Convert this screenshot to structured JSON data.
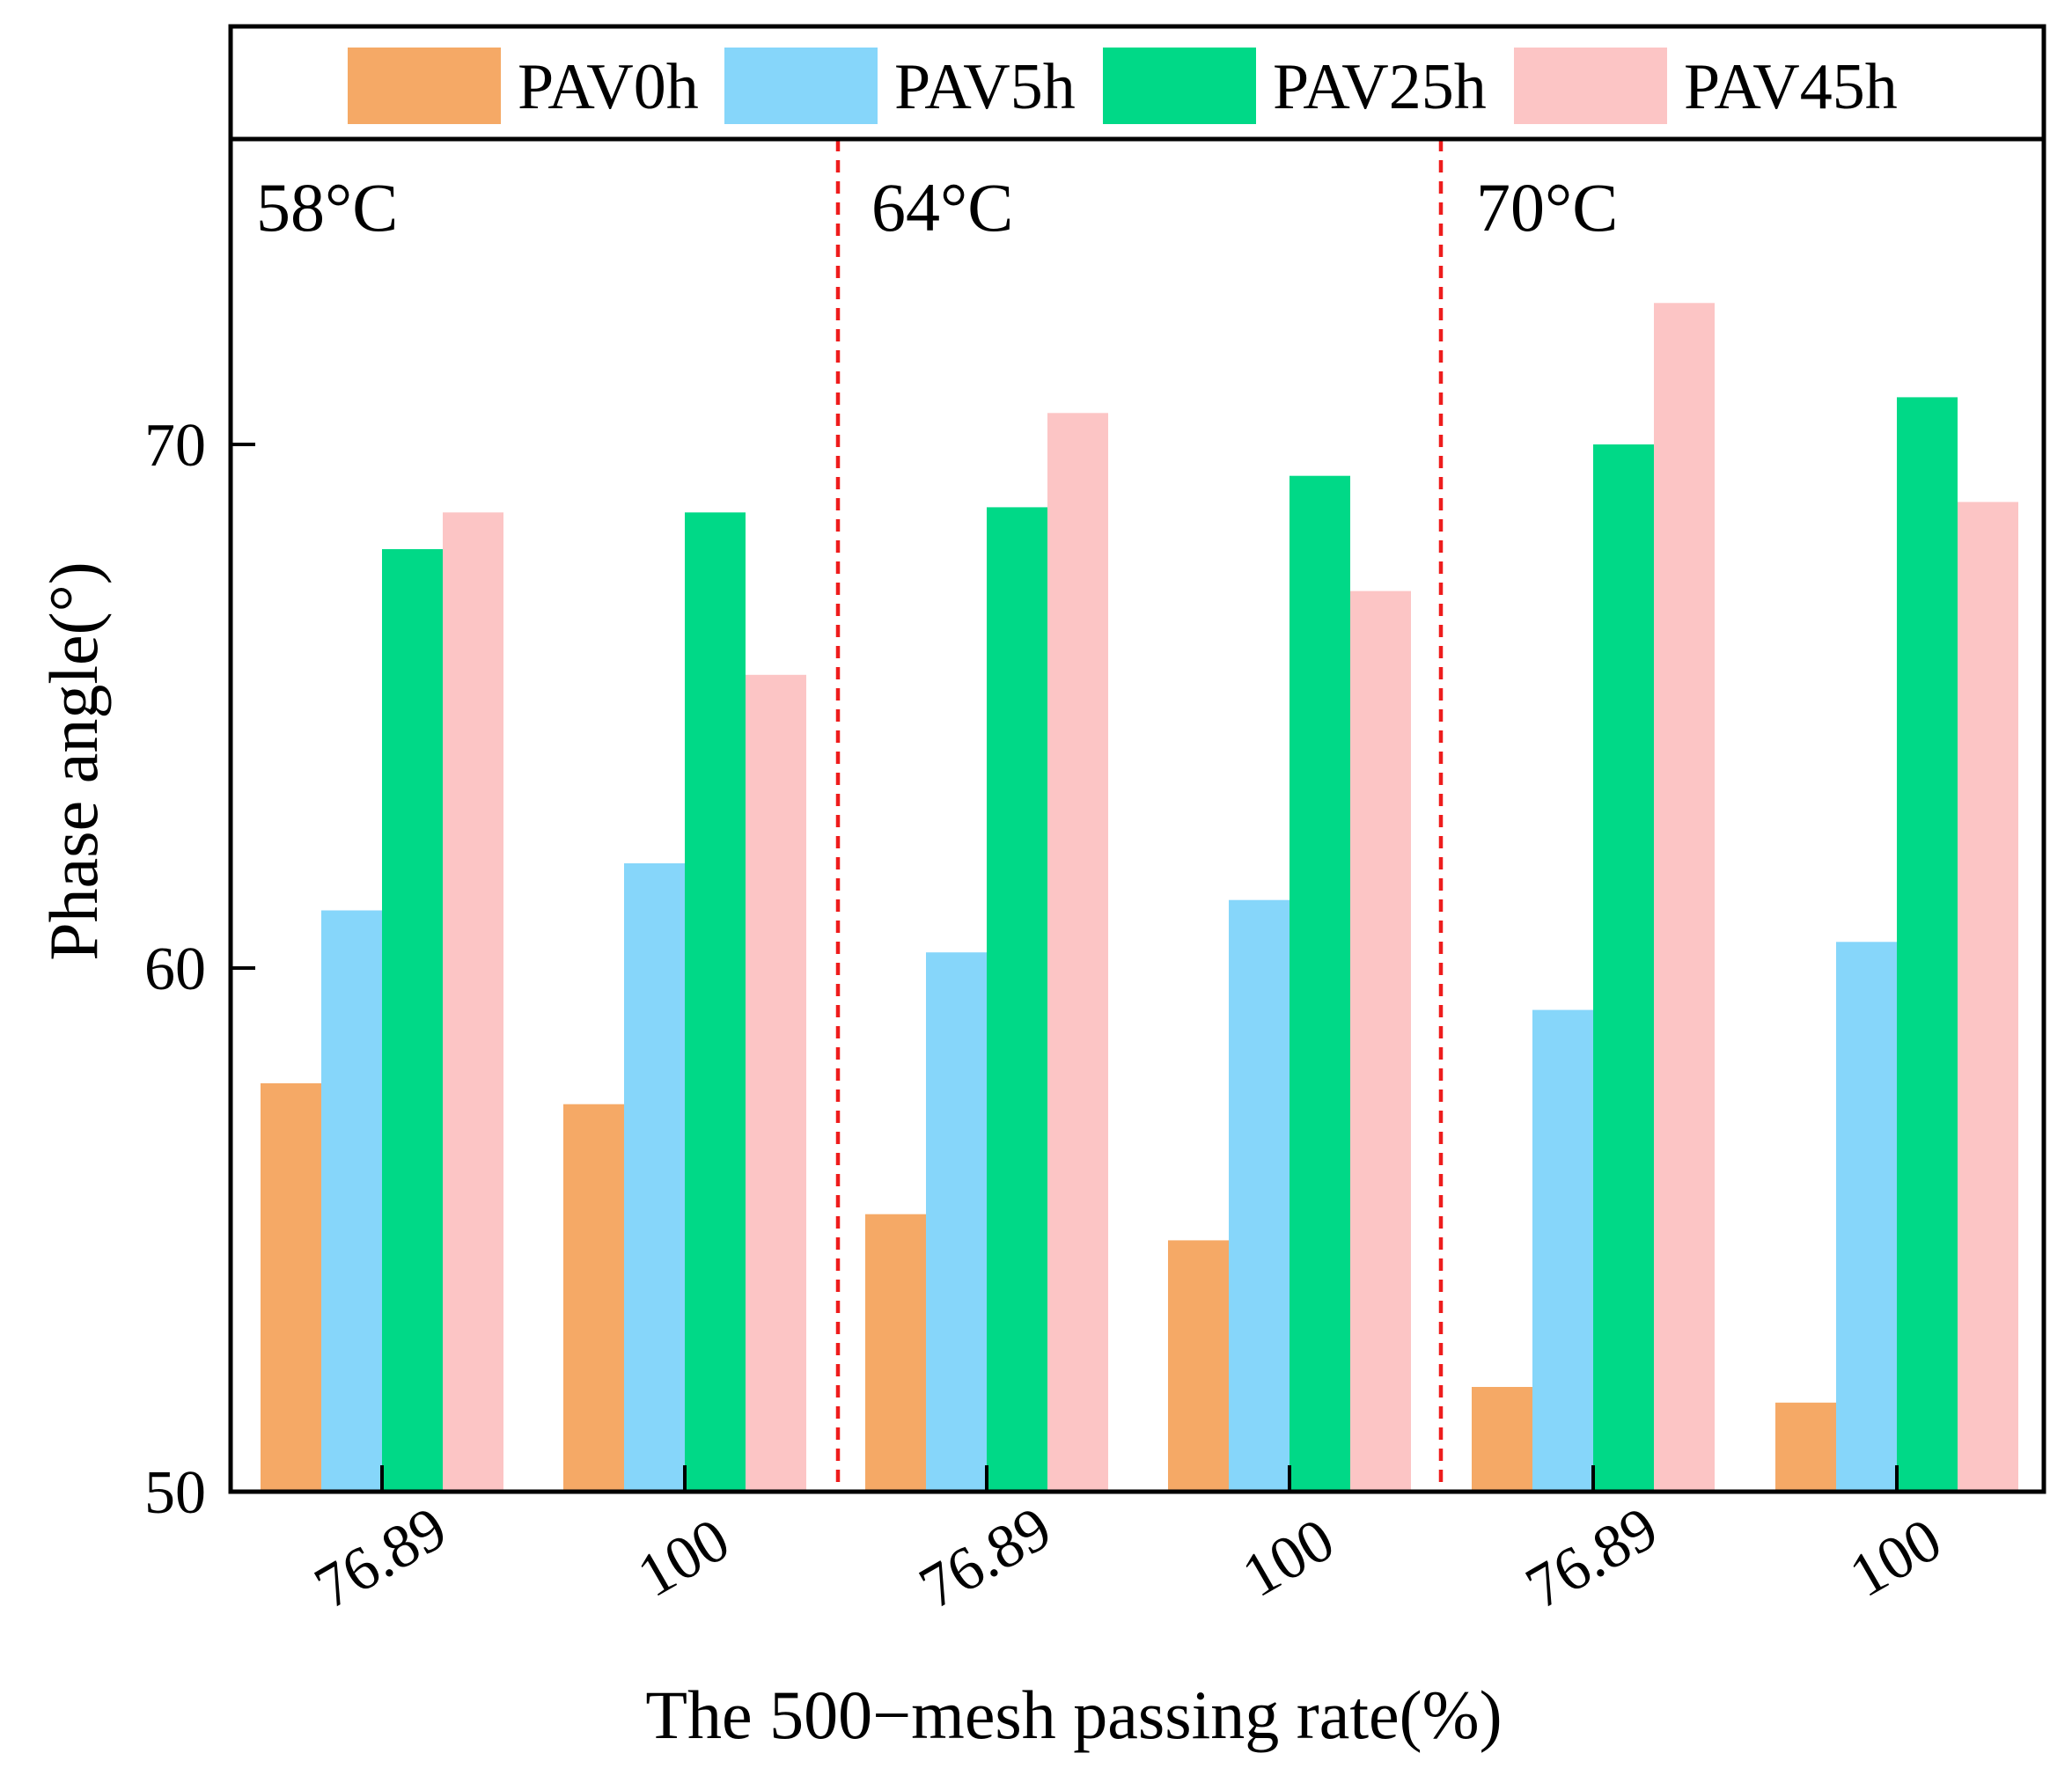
{
  "chart_data": {
    "type": "bar",
    "xlabel": "The 500−mesh passing rate(%)",
    "ylabel": "Phase angle(°)",
    "ylim": [
      50,
      75
    ],
    "yticks": [
      "50",
      "60",
      "70"
    ],
    "ytick_values": [
      50,
      60,
      70
    ],
    "grid": false,
    "legend_position": "top",
    "panels": [
      {
        "label": "58°C",
        "categories": [
          "76.89",
          "100"
        ],
        "series": [
          {
            "name": "PAV0h",
            "values": [
              57.8,
              57.4
            ]
          },
          {
            "name": "PAV5h",
            "values": [
              61.1,
              62.0
            ]
          },
          {
            "name": "PAV25h",
            "values": [
              68.0,
              68.7
            ]
          },
          {
            "name": "PAV45h",
            "values": [
              68.7,
              65.6
            ]
          }
        ]
      },
      {
        "label": "64°C",
        "categories": [
          "76.89",
          "100"
        ],
        "series": [
          {
            "name": "PAV0h",
            "values": [
              55.3,
              54.8
            ]
          },
          {
            "name": "PAV5h",
            "values": [
              60.3,
              61.3
            ]
          },
          {
            "name": "PAV25h",
            "values": [
              68.8,
              69.4
            ]
          },
          {
            "name": "PAV45h",
            "values": [
              70.6,
              67.2
            ]
          }
        ]
      },
      {
        "label": "70°C",
        "categories": [
          "76.89",
          "100"
        ],
        "series": [
          {
            "name": "PAV0h",
            "values": [
              52.0,
              51.7
            ]
          },
          {
            "name": "PAV5h",
            "values": [
              59.2,
              60.5
            ]
          },
          {
            "name": "PAV25h",
            "values": [
              70.0,
              70.9
            ]
          },
          {
            "name": "PAV45h",
            "values": [
              72.7,
              68.9
            ]
          }
        ]
      }
    ],
    "colors": {
      "PAV0h": "#f5a966",
      "PAV5h": "#86d6fa",
      "PAV25h": "#00d987",
      "PAV45h": "#fcc5c5"
    },
    "divider_color": "#ee1c1c"
  }
}
